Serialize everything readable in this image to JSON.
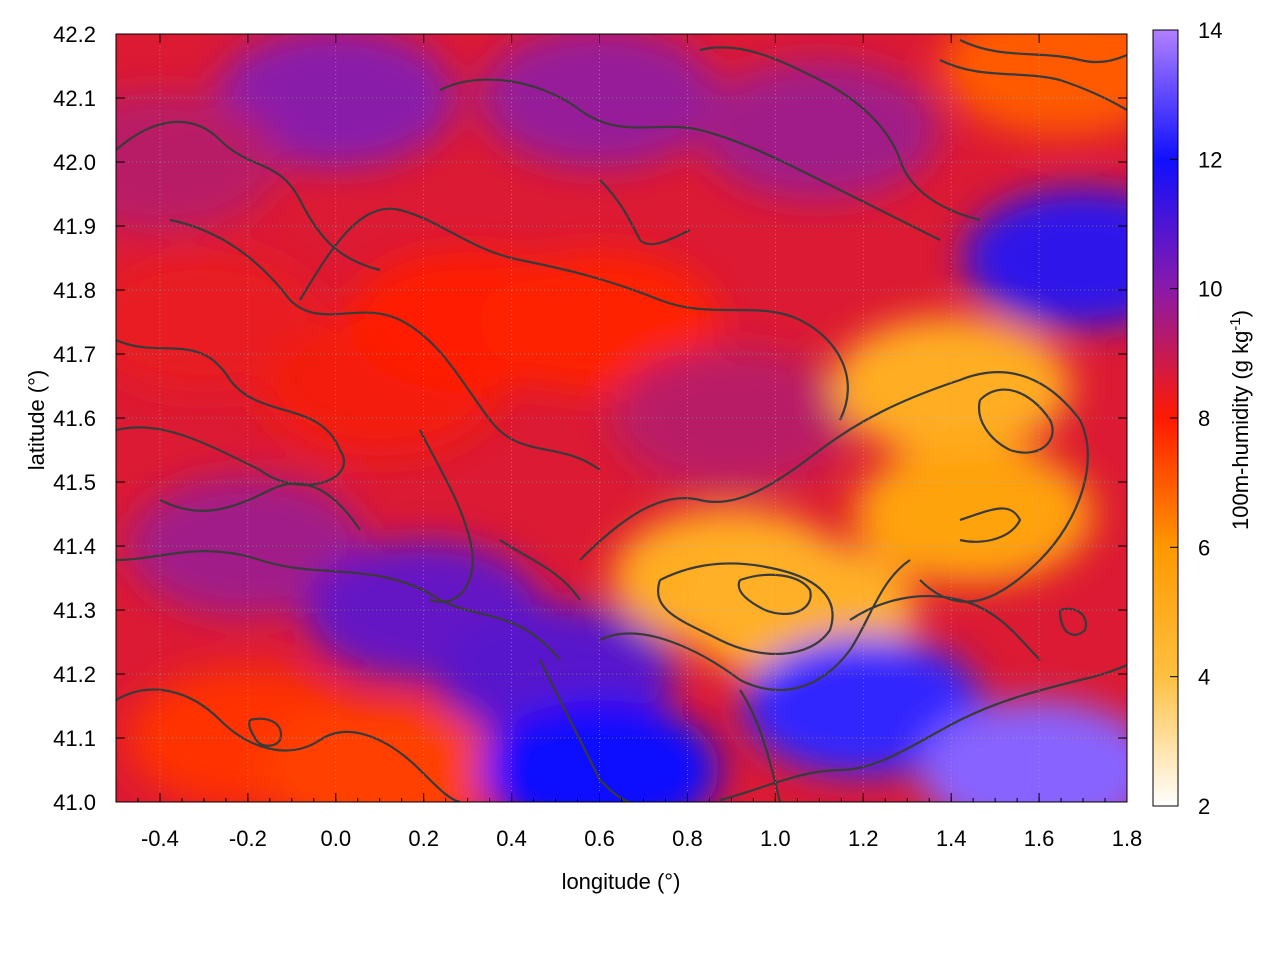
{
  "chart_data": {
    "type": "heatmap",
    "xlabel": "longitude (°)",
    "ylabel": "latitude (°)",
    "colorbar_label_main": "100m-humidity (g kg",
    "colorbar_label_sup": "-1",
    "colorbar_label_close": ")",
    "xlim": [
      -0.5,
      1.8
    ],
    "ylim": [
      41.0,
      42.2
    ],
    "xticks": [
      "-0.4",
      "-0.2",
      "0.0",
      "0.2",
      "0.4",
      "0.6",
      "0.8",
      "1.0",
      "1.2",
      "1.4",
      "1.6",
      "1.8"
    ],
    "xtick_values": [
      -0.4,
      -0.2,
      0.0,
      0.2,
      0.4,
      0.6,
      0.8,
      1.0,
      1.2,
      1.4,
      1.6,
      1.8
    ],
    "yticks": [
      "41.0",
      "41.1",
      "41.2",
      "41.3",
      "41.4",
      "41.5",
      "41.6",
      "41.7",
      "41.8",
      "41.9",
      "42.0",
      "42.1",
      "42.2"
    ],
    "ytick_values": [
      41.0,
      41.1,
      41.2,
      41.3,
      41.4,
      41.5,
      41.6,
      41.7,
      41.8,
      41.9,
      42.0,
      42.1,
      42.2
    ],
    "colorbar_ticks": [
      "2",
      "4",
      "6",
      "8",
      "10",
      "12",
      "14"
    ],
    "colorbar_values": [
      2,
      4,
      6,
      8,
      10,
      12,
      14
    ],
    "crange": [
      2,
      14
    ],
    "grid": true,
    "colormap": [
      "#ffffff",
      "#ffc040",
      "#ff9900",
      "#ff1a00",
      "#8a1aaa",
      "#1010ff",
      "#b080ff"
    ],
    "colormap_stops": [
      2,
      4,
      6,
      8,
      10,
      12,
      14
    ],
    "field_description_regions": [
      {
        "lon": -0.3,
        "lat": 41.75,
        "value": 8.4
      },
      {
        "lon": 0.1,
        "lat": 41.65,
        "value": 8.2
      },
      {
        "lon": 0.3,
        "lat": 41.75,
        "value": 8.0
      },
      {
        "lon": 0.6,
        "lat": 41.75,
        "value": 7.9
      },
      {
        "lon": 0.9,
        "lat": 41.6,
        "value": 9.2
      },
      {
        "lon": 1.4,
        "lat": 41.65,
        "value": 5.0
      },
      {
        "lon": 0.9,
        "lat": 41.35,
        "value": 5.0
      },
      {
        "lon": 1.05,
        "lat": 41.3,
        "value": 4.8
      },
      {
        "lon": 1.45,
        "lat": 41.45,
        "value": 5.5
      },
      {
        "lon": -0.2,
        "lat": 41.4,
        "value": 9.6
      },
      {
        "lon": 0.2,
        "lat": 41.3,
        "value": 10.6
      },
      {
        "lon": 0.5,
        "lat": 41.2,
        "value": 10.8
      },
      {
        "lon": -0.2,
        "lat": 41.1,
        "value": 7.6
      },
      {
        "lon": 0.1,
        "lat": 41.05,
        "value": 7.4
      },
      {
        "lon": 0.6,
        "lat": 41.05,
        "value": 12.0
      },
      {
        "lon": 1.2,
        "lat": 41.15,
        "value": 12.4
      },
      {
        "lon": 1.6,
        "lat": 41.05,
        "value": 13.5
      },
      {
        "lon": 1.7,
        "lat": 41.85,
        "value": 11.5
      },
      {
        "lon": 1.65,
        "lat": 42.15,
        "value": 7.0
      },
      {
        "lon": 0.0,
        "lat": 42.1,
        "value": 10.0
      },
      {
        "lon": 0.6,
        "lat": 42.1,
        "value": 9.8
      },
      {
        "lon": 1.1,
        "lat": 42.05,
        "value": 9.6
      },
      {
        "lon": -0.4,
        "lat": 42.0,
        "value": 9.2
      }
    ]
  }
}
